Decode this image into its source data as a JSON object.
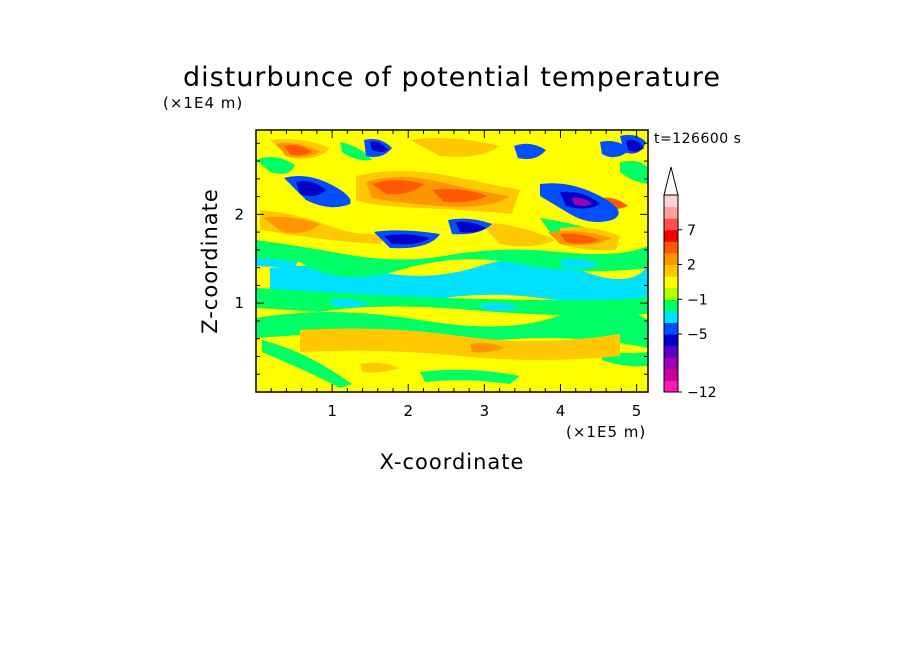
{
  "chart_data": {
    "type": "heatmap",
    "title": "disturbunce of potential temperature",
    "xlabel": "X-coordinate",
    "ylabel": "Z-coordinate",
    "x_unit": "(×1E5 m)",
    "y_unit": "(×1E4 m)",
    "time_label": "t=126600 s",
    "xlim": [
      0,
      5.15
    ],
    "ylim": [
      0,
      2.95
    ],
    "x_ticks": [
      1,
      2,
      3,
      4,
      5
    ],
    "y_ticks": [
      1,
      2
    ],
    "grid": false,
    "legend_position": "right",
    "colorbar": {
      "bins": [
        {
          "color": "#ff19b4"
        },
        {
          "color": "#c8009b"
        },
        {
          "color": "#9b00b4"
        },
        {
          "color": "#5a00c8"
        },
        {
          "color": "#0000c8"
        },
        {
          "color": "#0050ff"
        },
        {
          "color": "#00e1ff"
        },
        {
          "color": "#00ff64"
        },
        {
          "color": "#b4ff00"
        },
        {
          "color": "#ffff00"
        },
        {
          "color": "#ffc800"
        },
        {
          "color": "#ff9600"
        },
        {
          "color": "#ff5a00"
        },
        {
          "color": "#f50000"
        },
        {
          "color": "#ff5050"
        },
        {
          "color": "#ffa0a0"
        },
        {
          "color": "#ffd2d2"
        }
      ],
      "tick_labels": [
        "-12",
        "-5",
        "-1",
        "2",
        "7"
      ],
      "extend": "max"
    },
    "field_layers": [
      {
        "name": "yellow-base",
        "color": "#ffff00"
      },
      {
        "name": "lower-green",
        "color": "#00ff64"
      },
      {
        "name": "cyan-band",
        "color": "#00e1ff"
      },
      {
        "name": "upper-green",
        "color": "#00ff64"
      },
      {
        "name": "orange",
        "color": "#ffc800"
      },
      {
        "name": "dark-orange",
        "color": "#ff9600"
      },
      {
        "name": "red-orange",
        "color": "#ff5a00"
      },
      {
        "name": "blue",
        "color": "#0050ff"
      },
      {
        "name": "navy",
        "color": "#0000c8"
      },
      {
        "name": "purple",
        "color": "#9b00b4"
      }
    ]
  }
}
